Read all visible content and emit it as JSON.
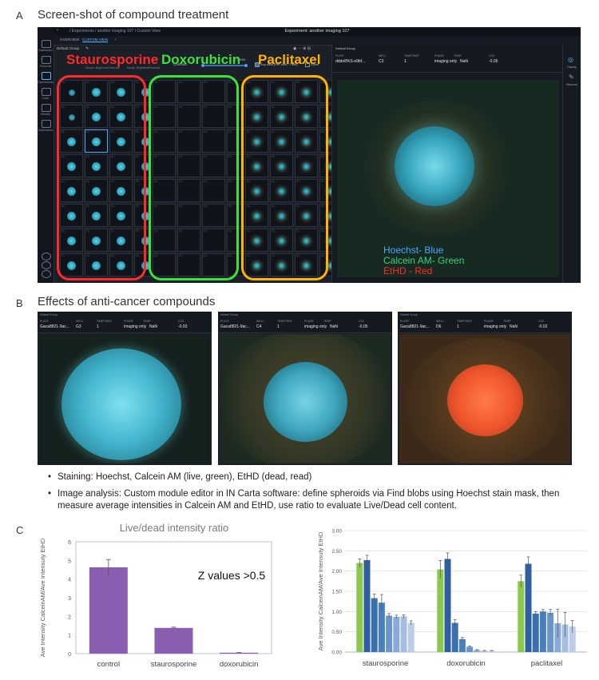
{
  "sections": {
    "a": {
      "letter": "A",
      "title": "Screen-shot of compound treatment"
    },
    "b": {
      "letter": "B",
      "title": "Effects of anti-cancer compounds"
    },
    "c": {
      "letter": "C"
    }
  },
  "app": {
    "breadcrumb": "/ Experiments / another imaging 107 / Custom View",
    "experiment_title": "Experiment: another imaging 107",
    "tabs": [
      "OVERVIEW",
      "CUSTOM VIEW",
      "+"
    ],
    "sidebar": [
      "Dashboard",
      "Protocols",
      "Experiments",
      "Data",
      "Results",
      "Calibrations"
    ],
    "toolbar": {
      "group_label": "Default Group",
      "contrast_label": "Contrast",
      "contrast_min": "0",
      "contrast_max": "6095",
      "any_data_label": "Any data (Per Well / Time)",
      "zoom_label": "Zoom",
      "hint_text": "Shown: Bright and Hoechst",
      "hint_text2": "Merge: Brightfield/Hoechst"
    },
    "compounds": [
      {
        "label": "Staurosporine",
        "color": "#ff2b2b"
      },
      {
        "label": "Doxorubicin",
        "color": "#3ce23c"
      },
      {
        "label": "Paclitaxel",
        "color": "#ffb300"
      }
    ],
    "detail": {
      "group": "Default Group",
      "plate_key": "PLATE",
      "plate": "ddde8%S-e9bf...",
      "well_key": "WELL",
      "well": "C3",
      "timepoint_key": "TIMEPOINT",
      "timepoint": "1",
      "phase_key": "PHASE",
      "phase": "imaging only",
      "temp_key": "TEMP",
      "temp": "NaN",
      "co2_key": "CO2",
      "co2": "-0.05",
      "display_label": "Display",
      "measure_label": "Measure"
    },
    "stain_legend": [
      {
        "text": "Hoechst- Blue",
        "color": "#4aa8ff"
      },
      {
        "text": "Calcein AM- Green",
        "color": "#3bd17a"
      },
      {
        "text": "EtHD - Red",
        "color": "#ff2a2a"
      }
    ]
  },
  "effects": [
    {
      "group": "Default Group",
      "plate": "Gaca8821-9ac...",
      "well": "G3",
      "timepoint": "1",
      "phase": "imaging only",
      "temp": "NaN",
      "co2": "-0.03",
      "type": "live"
    },
    {
      "group": "Default Group",
      "plate": "Gaca8821-9ac...",
      "well": "C4",
      "timepoint": "1",
      "phase": "imaging only",
      "temp": "NaN",
      "co2": "-0.05",
      "type": "mixed"
    },
    {
      "group": "Default Group",
      "plate": "Gaca8821-9ac...",
      "well": "D6",
      "timepoint": "1",
      "phase": "imaging only",
      "temp": "NaN",
      "co2": "-0.02",
      "type": "dead"
    }
  ],
  "meta_keys": {
    "plate": "PLATE",
    "well": "WELL",
    "timepoint": "TIMEPOINT",
    "phase": "PHASE",
    "temp": "TEMP",
    "co2": "CO2"
  },
  "bullets": [
    "Staining: Hoechst, Calcein AM (live, green), EtHD (dead, read)",
    "Image analysis: Custom module editor in IN Carta software: define spheroids via Find blobs using Hoechst stain mask, then measure average intensities in Calcein AM and EtHD, use ratio to evaluate Live/Dead cell content."
  ],
  "chart_data": [
    {
      "type": "bar",
      "title": "Live/dead intensity ratio",
      "ylabel": "Ave Intensity CalceinAM/Ave Intensuty EtHD",
      "annotation": "Z values >0.5",
      "categories": [
        "control",
        "staurosporine",
        "doxorubicin"
      ],
      "values": [
        4.63,
        1.38,
        0.05
      ],
      "errors": [
        0.42,
        0.04,
        0.01
      ],
      "ylim": [
        0,
        6
      ],
      "yticks": [
        0,
        1,
        2,
        3,
        4,
        5,
        6
      ],
      "grid": false,
      "color": "#8a5fb2"
    },
    {
      "type": "bar",
      "ylabel": "Ave Intensity CalceinAM/Ave Intensuty EtHD",
      "categories": [
        "staurosporine",
        "doxorubicin",
        "paclitaxel"
      ],
      "ylim": [
        0,
        3
      ],
      "yticks": [
        "0.00",
        "0.50",
        "1.00",
        "1.50",
        "2.00",
        "2.50",
        "3.00"
      ],
      "grid": true,
      "series_colors": [
        "#8cc84b",
        "#2f5f9e",
        "#3a6fb0",
        "#4a7fbf",
        "#6a95cc",
        "#8aaad6",
        "#a5bde0",
        "#bccde8"
      ],
      "groups": [
        {
          "values": [
            2.2,
            2.27,
            1.33,
            1.22,
            0.9,
            0.87,
            0.88,
            0.72
          ],
          "errors": [
            0.1,
            0.12,
            0.1,
            0.2,
            0.05,
            0.04,
            0.04,
            0.05
          ]
        },
        {
          "values": [
            2.04,
            2.3,
            0.72,
            0.32,
            0.13,
            0.05,
            0.03,
            0.03
          ],
          "errors": [
            0.22,
            0.15,
            0.08,
            0.04,
            0.02,
            0.01,
            0.01,
            0.01
          ]
        },
        {
          "values": [
            1.75,
            2.18,
            0.95,
            1.0,
            0.97,
            0.71,
            0.68,
            0.63
          ],
          "errors": [
            0.15,
            0.17,
            0.05,
            0.05,
            0.08,
            0.35,
            0.3,
            0.15
          ]
        }
      ]
    }
  ]
}
